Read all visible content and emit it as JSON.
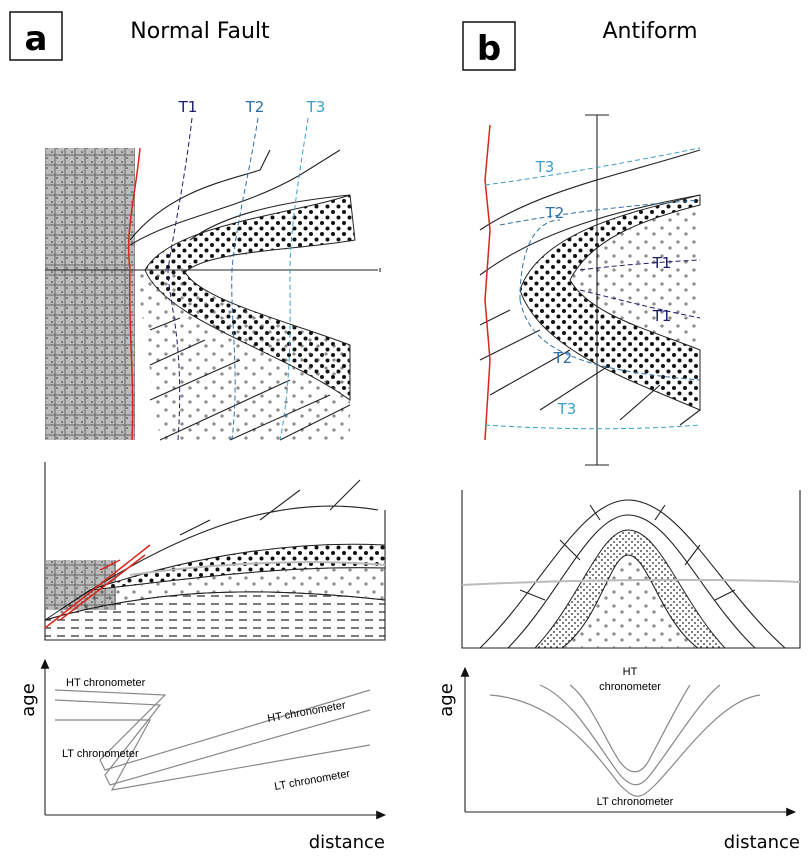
{
  "panels": [
    {
      "label": "a",
      "title": "Normal Fault",
      "map_labels": [
        "T1",
        "T2",
        "T3"
      ],
      "graph": {
        "y_axis": "age",
        "x_axis": "distance",
        "curve_labels": [
          "HT chronometer",
          "LT chronometer",
          "HT chronometer",
          "LT chronometer"
        ]
      }
    },
    {
      "label": "b",
      "title": "Antiform",
      "map_labels": [
        "T3",
        "T2",
        "T1",
        "T1",
        "T2",
        "T3"
      ],
      "graph": {
        "y_axis": "age",
        "x_axis": "distance",
        "ht_label_lines": [
          "HT",
          "chronometer"
        ],
        "lt_label": "LT chronometer"
      }
    }
  ]
}
